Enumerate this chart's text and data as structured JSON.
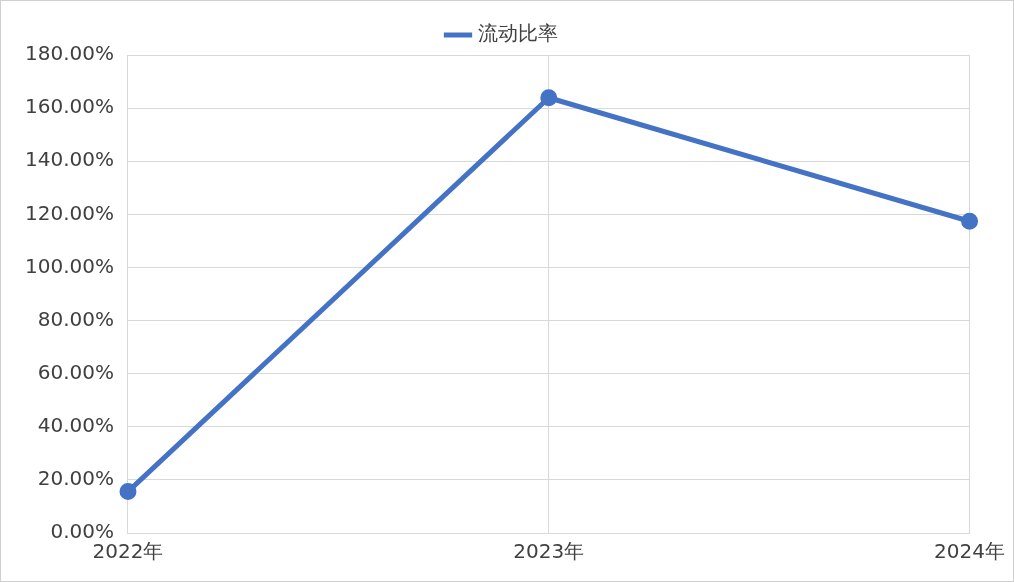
{
  "chart_data": {
    "type": "line",
    "categories": [
      "2022年",
      "2023年",
      "2024年"
    ],
    "series": [
      {
        "name": "流动比率",
        "color": "#4472c4",
        "values": [
          15.6,
          163.9,
          117.4
        ]
      }
    ],
    "ylim": [
      0,
      180
    ],
    "yticks": [
      {
        "value": 0,
        "label": "0.00%"
      },
      {
        "value": 20,
        "label": "20.00%"
      },
      {
        "value": 40,
        "label": "40.00%"
      },
      {
        "value": 60,
        "label": "60.00%"
      },
      {
        "value": 80,
        "label": "80.00%"
      },
      {
        "value": 100,
        "label": "100.00%"
      },
      {
        "value": 120,
        "label": "120.00%"
      },
      {
        "value": 140,
        "label": "140.00%"
      },
      {
        "value": 160,
        "label": "160.00%"
      },
      {
        "value": 180,
        "label": "180.00%"
      }
    ],
    "grid": true,
    "legend": "top",
    "marker": "circle",
    "line_style": "solid"
  }
}
